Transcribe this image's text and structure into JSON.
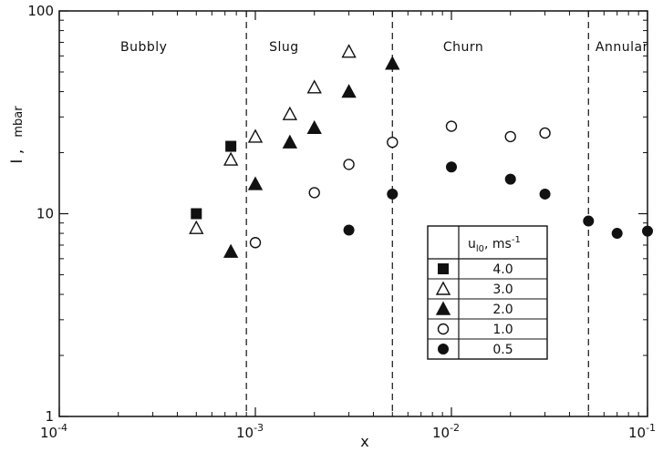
{
  "chart_data": {
    "type": "scatter",
    "title": "",
    "xlabel": "x",
    "ylabel": "I ,",
    "ylabel_unit": "mbar",
    "x_scale": "log",
    "y_scale": "log",
    "xlim": [
      0.0001,
      0.1
    ],
    "ylim": [
      1,
      100
    ],
    "grid": false,
    "legend_position": "lower-right-inside",
    "legend_header": "u",
    "legend_header_sub": "l0",
    "legend_header_unit": ", ms",
    "legend_header_sup": "-1",
    "x_ticks": [
      {
        "value": 0.0001,
        "base": "10",
        "exp": "-4"
      },
      {
        "value": 0.001,
        "base": "10",
        "exp": "-3"
      },
      {
        "value": 0.01,
        "base": "10",
        "exp": "-2"
      },
      {
        "value": 0.1,
        "base": "10",
        "exp": "-1"
      }
    ],
    "y_ticks": [
      {
        "value": 1,
        "label": "1"
      },
      {
        "value": 10,
        "label": "10"
      },
      {
        "value": 100,
        "label": "100"
      }
    ],
    "regime_boundaries": [
      0.0009,
      0.005,
      0.05
    ],
    "regions": [
      {
        "label": "Bubbly",
        "x": 0.00027
      },
      {
        "label": "Slug",
        "x": 0.0014
      },
      {
        "label": "Churn",
        "x": 0.0115
      },
      {
        "label": "Annular",
        "x": 0.074
      }
    ],
    "series": [
      {
        "name": "4.0",
        "marker": "filled-square",
        "x": [
          0.0005,
          0.00075
        ],
        "y": [
          10,
          21.5
        ]
      },
      {
        "name": "3.0",
        "marker": "open-triangle",
        "x": [
          0.0005,
          0.00075,
          0.001,
          0.0015,
          0.002,
          0.003
        ],
        "y": [
          8.5,
          18.5,
          24,
          31,
          42,
          63
        ]
      },
      {
        "name": "2.0",
        "marker": "filled-triangle",
        "x": [
          0.00075,
          0.001,
          0.0015,
          0.002,
          0.003,
          0.005
        ],
        "y": [
          6.5,
          14,
          22.5,
          26.5,
          40,
          55
        ]
      },
      {
        "name": "1.0",
        "marker": "open-circle",
        "x": [
          0.001,
          0.002,
          0.003,
          0.005,
          0.01,
          0.02,
          0.03
        ],
        "y": [
          7.2,
          12.7,
          17.5,
          22.5,
          27,
          24,
          25
        ]
      },
      {
        "name": "0.5",
        "marker": "filled-circle",
        "x": [
          0.003,
          0.005,
          0.01,
          0.02,
          0.03,
          0.05,
          0.07,
          0.1
        ],
        "y": [
          8.3,
          12.5,
          17,
          14.8,
          12.5,
          9.2,
          8,
          8.2
        ]
      }
    ]
  }
}
